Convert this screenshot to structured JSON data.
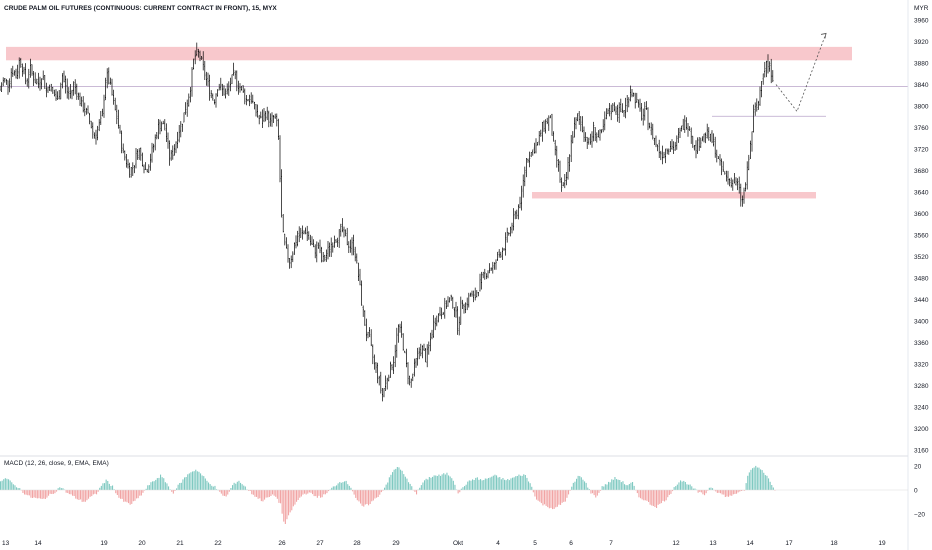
{
  "title": "CRUDE PALM OIL FUTURES (CONTINUOUS: CURRENT CONTRACT IN FRONT), 15, MYX",
  "currency": "MYR",
  "macd_label": "MACD (12, 26, close, 9, EMA, EMA)",
  "colors": {
    "candle": "#000000",
    "zone": "#f8c8cc",
    "hline": "#b9a3c9",
    "macd_pos": "#7fc9c1",
    "macd_neg": "#f1a4a4",
    "axis_text": "#131722",
    "projection": "#555555"
  },
  "chart_data": {
    "type": "candlestick",
    "price_axis": {
      "min": 3160,
      "max": 3960,
      "ticks": [
        "3960",
        "3920",
        "3880",
        "3840",
        "3800",
        "3760",
        "3720",
        "3680",
        "3640",
        "3600",
        "3560",
        "3520",
        "3480",
        "3440",
        "3400",
        "3360",
        "3320",
        "3280",
        "3240",
        "3200",
        "3160"
      ]
    },
    "macd_axis": {
      "ticks": [
        "20",
        "0",
        "−20"
      ],
      "min": -28,
      "max": 26
    },
    "x_labels": [
      "13",
      "14",
      "19",
      "20",
      "21",
      "22",
      "26",
      "27",
      "28",
      "29",
      "Okt",
      "4",
      "5",
      "6",
      "7",
      "12",
      "13",
      "14",
      "17",
      "18",
      "19"
    ],
    "price_path": [
      [
        0,
        3830
      ],
      [
        4,
        3850
      ],
      [
        8,
        3840
      ],
      [
        12,
        3870
      ],
      [
        16,
        3855
      ],
      [
        20,
        3890
      ],
      [
        22,
        3875
      ],
      [
        26,
        3845
      ],
      [
        30,
        3870
      ],
      [
        34,
        3850
      ],
      [
        38,
        3840
      ],
      [
        42,
        3860
      ],
      [
        46,
        3830
      ],
      [
        50,
        3840
      ],
      [
        54,
        3820
      ],
      [
        58,
        3810
      ],
      [
        62,
        3860
      ],
      [
        66,
        3830
      ],
      [
        70,
        3820
      ],
      [
        74,
        3840
      ],
      [
        78,
        3820
      ],
      [
        82,
        3800
      ],
      [
        86,
        3790
      ],
      [
        90,
        3770
      ],
      [
        94,
        3745
      ],
      [
        98,
        3760
      ],
      [
        102,
        3775
      ],
      [
        106,
        3860
      ],
      [
        110,
        3840
      ],
      [
        114,
        3800
      ],
      [
        118,
        3770
      ],
      [
        122,
        3720
      ],
      [
        126,
        3700
      ],
      [
        130,
        3680
      ],
      [
        134,
        3690
      ],
      [
        138,
        3720
      ],
      [
        142,
        3700
      ],
      [
        146,
        3680
      ],
      [
        150,
        3700
      ],
      [
        154,
        3730
      ],
      [
        158,
        3760
      ],
      [
        162,
        3770
      ],
      [
        166,
        3750
      ],
      [
        170,
        3700
      ],
      [
        174,
        3720
      ],
      [
        178,
        3750
      ],
      [
        182,
        3770
      ],
      [
        186,
        3800
      ],
      [
        190,
        3830
      ],
      [
        194,
        3890
      ],
      [
        198,
        3900
      ],
      [
        202,
        3880
      ],
      [
        206,
        3850
      ],
      [
        210,
        3830
      ],
      [
        214,
        3810
      ],
      [
        218,
        3840
      ],
      [
        222,
        3830
      ],
      [
        226,
        3820
      ],
      [
        230,
        3840
      ],
      [
        234,
        3860
      ],
      [
        238,
        3840
      ],
      [
        242,
        3830
      ],
      [
        246,
        3810
      ],
      [
        250,
        3820
      ],
      [
        254,
        3800
      ],
      [
        258,
        3780
      ],
      [
        262,
        3770
      ],
      [
        266,
        3790
      ],
      [
        270,
        3770
      ],
      [
        274,
        3780
      ],
      [
        278,
        3760
      ],
      [
        282,
        3570
      ],
      [
        286,
        3530
      ],
      [
        290,
        3510
      ],
      [
        294,
        3540
      ],
      [
        298,
        3560
      ],
      [
        302,
        3560
      ],
      [
        306,
        3570
      ],
      [
        310,
        3550
      ],
      [
        314,
        3530
      ],
      [
        318,
        3540
      ],
      [
        322,
        3510
      ],
      [
        326,
        3520
      ],
      [
        330,
        3540
      ],
      [
        334,
        3550
      ],
      [
        338,
        3560
      ],
      [
        342,
        3570
      ],
      [
        346,
        3550
      ],
      [
        350,
        3540
      ],
      [
        354,
        3540
      ],
      [
        358,
        3490
      ],
      [
        362,
        3430
      ],
      [
        366,
        3380
      ],
      [
        370,
        3360
      ],
      [
        374,
        3320
      ],
      [
        378,
        3300
      ],
      [
        382,
        3260
      ],
      [
        386,
        3290
      ],
      [
        390,
        3310
      ],
      [
        394,
        3330
      ],
      [
        398,
        3390
      ],
      [
        402,
        3370
      ],
      [
        406,
        3320
      ],
      [
        410,
        3280
      ],
      [
        414,
        3310
      ],
      [
        418,
        3340
      ],
      [
        422,
        3350
      ],
      [
        426,
        3330
      ],
      [
        430,
        3360
      ],
      [
        434,
        3400
      ],
      [
        438,
        3410
      ],
      [
        442,
        3420
      ],
      [
        446,
        3430
      ],
      [
        450,
        3440
      ],
      [
        454,
        3430
      ],
      [
        458,
        3390
      ],
      [
        462,
        3440
      ],
      [
        466,
        3430
      ],
      [
        470,
        3450
      ],
      [
        474,
        3440
      ],
      [
        478,
        3460
      ],
      [
        482,
        3480
      ],
      [
        486,
        3490
      ],
      [
        490,
        3500
      ],
      [
        494,
        3500
      ],
      [
        498,
        3520
      ],
      [
        502,
        3530
      ],
      [
        506,
        3550
      ],
      [
        510,
        3570
      ],
      [
        514,
        3590
      ],
      [
        518,
        3610
      ],
      [
        522,
        3640
      ],
      [
        526,
        3700
      ],
      [
        530,
        3710
      ],
      [
        534,
        3720
      ],
      [
        538,
        3730
      ],
      [
        542,
        3760
      ],
      [
        546,
        3770
      ],
      [
        550,
        3780
      ],
      [
        554,
        3720
      ],
      [
        558,
        3690
      ],
      [
        562,
        3640
      ],
      [
        566,
        3660
      ],
      [
        570,
        3720
      ],
      [
        574,
        3760
      ],
      [
        578,
        3780
      ],
      [
        582,
        3760
      ],
      [
        586,
        3740
      ],
      [
        590,
        3730
      ],
      [
        594,
        3760
      ],
      [
        598,
        3740
      ],
      [
        602,
        3750
      ],
      [
        606,
        3780
      ],
      [
        610,
        3790
      ],
      [
        614,
        3800
      ],
      [
        618,
        3790
      ],
      [
        622,
        3790
      ],
      [
        626,
        3800
      ],
      [
        630,
        3830
      ],
      [
        634,
        3820
      ],
      [
        638,
        3800
      ],
      [
        642,
        3780
      ],
      [
        646,
        3790
      ],
      [
        650,
        3760
      ],
      [
        654,
        3740
      ],
      [
        658,
        3720
      ],
      [
        662,
        3710
      ],
      [
        666,
        3720
      ],
      [
        670,
        3730
      ],
      [
        674,
        3720
      ],
      [
        678,
        3740
      ],
      [
        682,
        3760
      ],
      [
        686,
        3770
      ],
      [
        690,
        3760
      ],
      [
        694,
        3720
      ],
      [
        698,
        3730
      ],
      [
        702,
        3740
      ],
      [
        706,
        3750
      ],
      [
        710,
        3740
      ],
      [
        714,
        3730
      ],
      [
        718,
        3700
      ],
      [
        722,
        3680
      ],
      [
        726,
        3670
      ],
      [
        730,
        3660
      ],
      [
        734,
        3660
      ],
      [
        738,
        3650
      ],
      [
        742,
        3620
      ],
      [
        746,
        3660
      ],
      [
        750,
        3720
      ],
      [
        754,
        3790
      ],
      [
        758,
        3800
      ],
      [
        762,
        3860
      ],
      [
        766,
        3880
      ],
      [
        770,
        3870
      ],
      [
        774,
        3850
      ]
    ],
    "macd_path": [
      [
        0,
        8
      ],
      [
        6,
        10
      ],
      [
        12,
        5
      ],
      [
        18,
        2
      ],
      [
        24,
        -3
      ],
      [
        30,
        -6
      ],
      [
        36,
        -7
      ],
      [
        42,
        -8
      ],
      [
        48,
        -5
      ],
      [
        54,
        -2
      ],
      [
        60,
        3
      ],
      [
        66,
        -2
      ],
      [
        72,
        -5
      ],
      [
        78,
        -8
      ],
      [
        84,
        -10
      ],
      [
        90,
        -6
      ],
      [
        96,
        -3
      ],
      [
        102,
        5
      ],
      [
        106,
        8
      ],
      [
        112,
        3
      ],
      [
        118,
        -6
      ],
      [
        124,
        -10
      ],
      [
        130,
        -12
      ],
      [
        136,
        -8
      ],
      [
        142,
        -3
      ],
      [
        148,
        4
      ],
      [
        154,
        8
      ],
      [
        160,
        12
      ],
      [
        166,
        6
      ],
      [
        172,
        -3
      ],
      [
        178,
        4
      ],
      [
        184,
        10
      ],
      [
        190,
        15
      ],
      [
        196,
        17
      ],
      [
        202,
        12
      ],
      [
        208,
        6
      ],
      [
        214,
        3
      ],
      [
        220,
        -3
      ],
      [
        226,
        -6
      ],
      [
        232,
        4
      ],
      [
        238,
        8
      ],
      [
        244,
        3
      ],
      [
        250,
        -2
      ],
      [
        256,
        -6
      ],
      [
        262,
        -9
      ],
      [
        268,
        -6
      ],
      [
        274,
        -4
      ],
      [
        280,
        -12
      ],
      [
        284,
        -30
      ],
      [
        290,
        -18
      ],
      [
        296,
        -10
      ],
      [
        302,
        -4
      ],
      [
        308,
        -2
      ],
      [
        314,
        -5
      ],
      [
        320,
        -6
      ],
      [
        326,
        -3
      ],
      [
        332,
        2
      ],
      [
        338,
        6
      ],
      [
        344,
        8
      ],
      [
        350,
        3
      ],
      [
        356,
        -8
      ],
      [
        362,
        -14
      ],
      [
        368,
        -12
      ],
      [
        374,
        -8
      ],
      [
        380,
        -3
      ],
      [
        386,
        5
      ],
      [
        392,
        15
      ],
      [
        398,
        20
      ],
      [
        404,
        12
      ],
      [
        410,
        4
      ],
      [
        416,
        -3
      ],
      [
        422,
        6
      ],
      [
        428,
        10
      ],
      [
        434,
        12
      ],
      [
        440,
        12
      ],
      [
        446,
        14
      ],
      [
        452,
        10
      ],
      [
        458,
        -3
      ],
      [
        464,
        4
      ],
      [
        470,
        8
      ],
      [
        476,
        10
      ],
      [
        482,
        8
      ],
      [
        488,
        10
      ],
      [
        494,
        12
      ],
      [
        500,
        10
      ],
      [
        506,
        8
      ],
      [
        512,
        10
      ],
      [
        518,
        12
      ],
      [
        524,
        13
      ],
      [
        530,
        5
      ],
      [
        536,
        -8
      ],
      [
        542,
        -12
      ],
      [
        548,
        -14
      ],
      [
        554,
        -16
      ],
      [
        560,
        -12
      ],
      [
        566,
        -8
      ],
      [
        572,
        4
      ],
      [
        578,
        12
      ],
      [
        584,
        8
      ],
      [
        590,
        -2
      ],
      [
        596,
        -6
      ],
      [
        602,
        3
      ],
      [
        608,
        6
      ],
      [
        614,
        10
      ],
      [
        620,
        8
      ],
      [
        626,
        4
      ],
      [
        632,
        6
      ],
      [
        638,
        -6
      ],
      [
        644,
        -8
      ],
      [
        650,
        -12
      ],
      [
        656,
        -14
      ],
      [
        662,
        -10
      ],
      [
        668,
        -6
      ],
      [
        674,
        3
      ],
      [
        680,
        8
      ],
      [
        686,
        6
      ],
      [
        692,
        2
      ],
      [
        698,
        -2
      ],
      [
        704,
        -4
      ],
      [
        710,
        3
      ],
      [
        716,
        -1
      ],
      [
        722,
        -4
      ],
      [
        728,
        -6
      ],
      [
        734,
        -3
      ],
      [
        740,
        -2
      ],
      [
        744,
        0
      ],
      [
        748,
        14
      ],
      [
        754,
        20
      ],
      [
        760,
        18
      ],
      [
        766,
        12
      ],
      [
        772,
        4
      ],
      [
        776,
        -2
      ]
    ],
    "projection": [
      [
        776,
        3840
      ],
      [
        797,
        3790
      ],
      [
        826,
        3935
      ]
    ]
  }
}
